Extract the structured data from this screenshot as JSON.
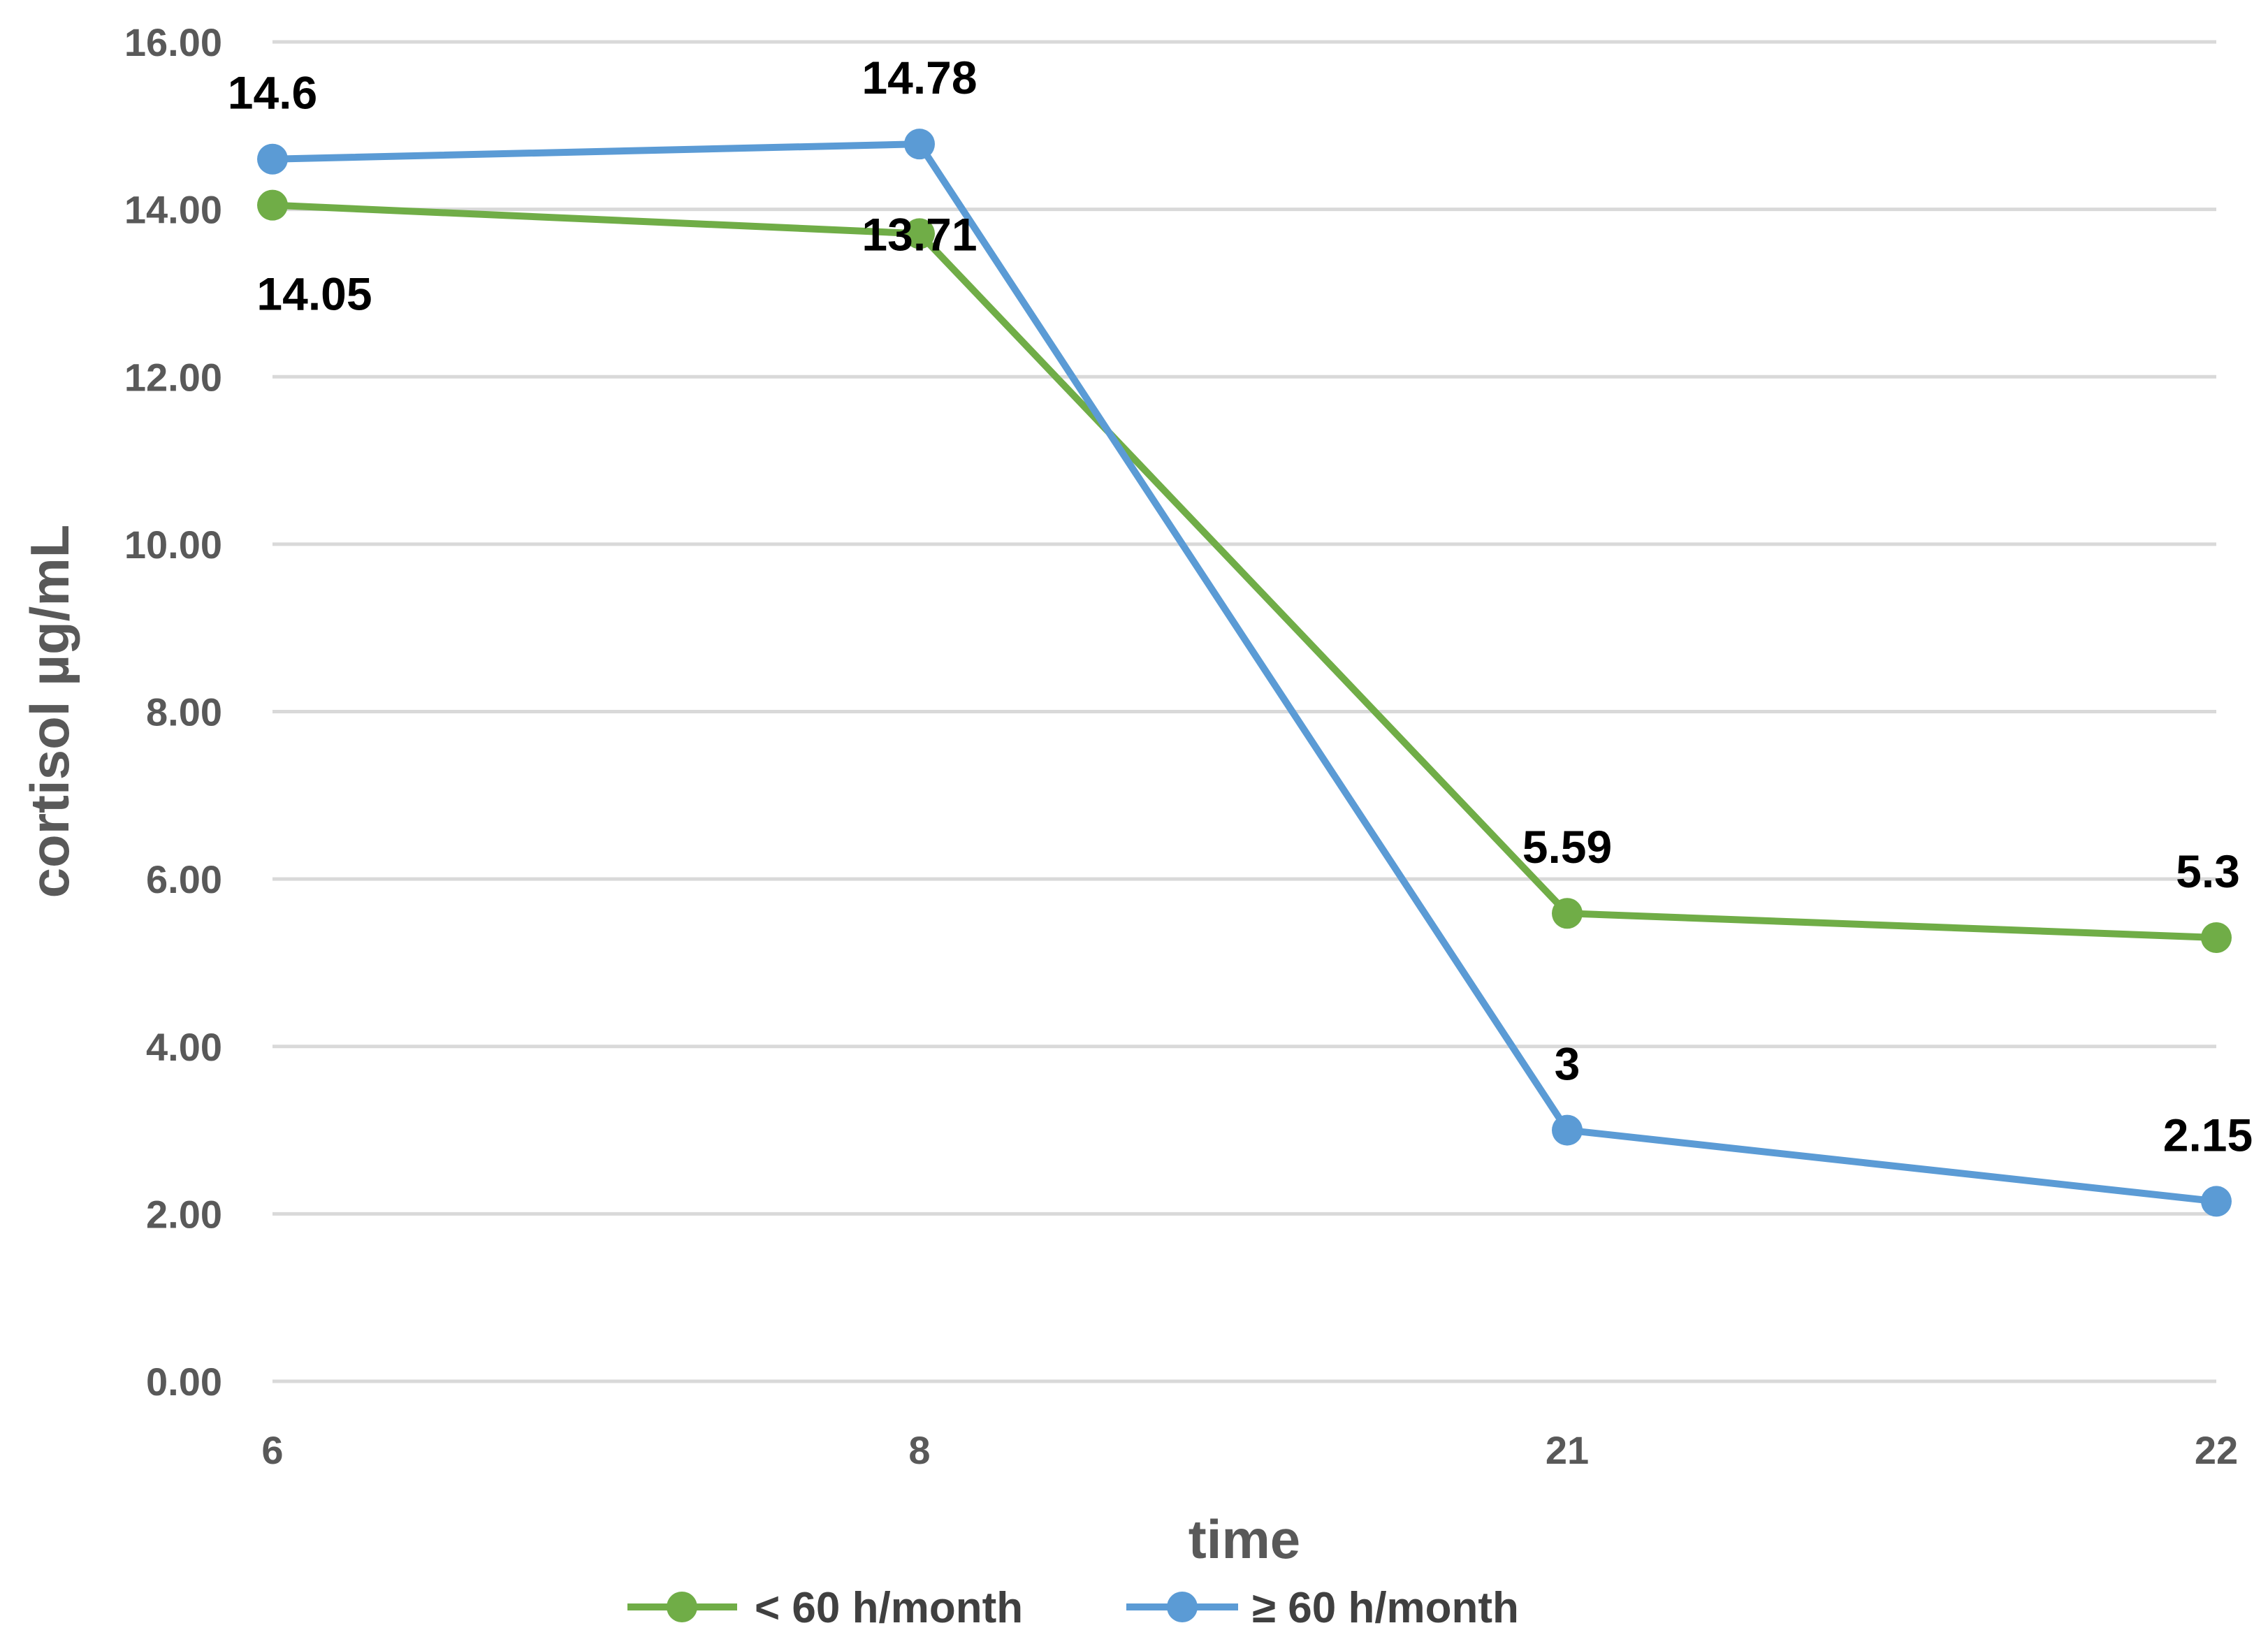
{
  "chart_data": {
    "type": "line",
    "categories": [
      "6",
      "8",
      "21",
      "22"
    ],
    "xlabel": "time",
    "ylabel": "cortisol µg/mL",
    "ylim": [
      0,
      16
    ],
    "ytick_step": 2,
    "ytick_labels": [
      "0.00",
      "2.00",
      "4.00",
      "6.00",
      "8.00",
      "10.00",
      "12.00",
      "14.00",
      "16.00"
    ],
    "grid": true,
    "legend_position": "bottom",
    "series": [
      {
        "name": "< 60 h/month",
        "color": "#70AD47",
        "values": [
          14.05,
          13.71,
          5.59,
          5.3
        ],
        "labels": [
          "14.05",
          "13.71",
          "5.59",
          "5.3"
        ],
        "label_positions": [
          "below",
          "right",
          "above",
          "above"
        ]
      },
      {
        "name": "≥ 60 h/month",
        "color": "#5B9BD5",
        "values": [
          14.6,
          14.78,
          3,
          2.15
        ],
        "labels": [
          "14.6",
          "14.78",
          "3",
          "2.15"
        ],
        "label_positions": [
          "above",
          "above",
          "above",
          "above"
        ]
      }
    ]
  }
}
